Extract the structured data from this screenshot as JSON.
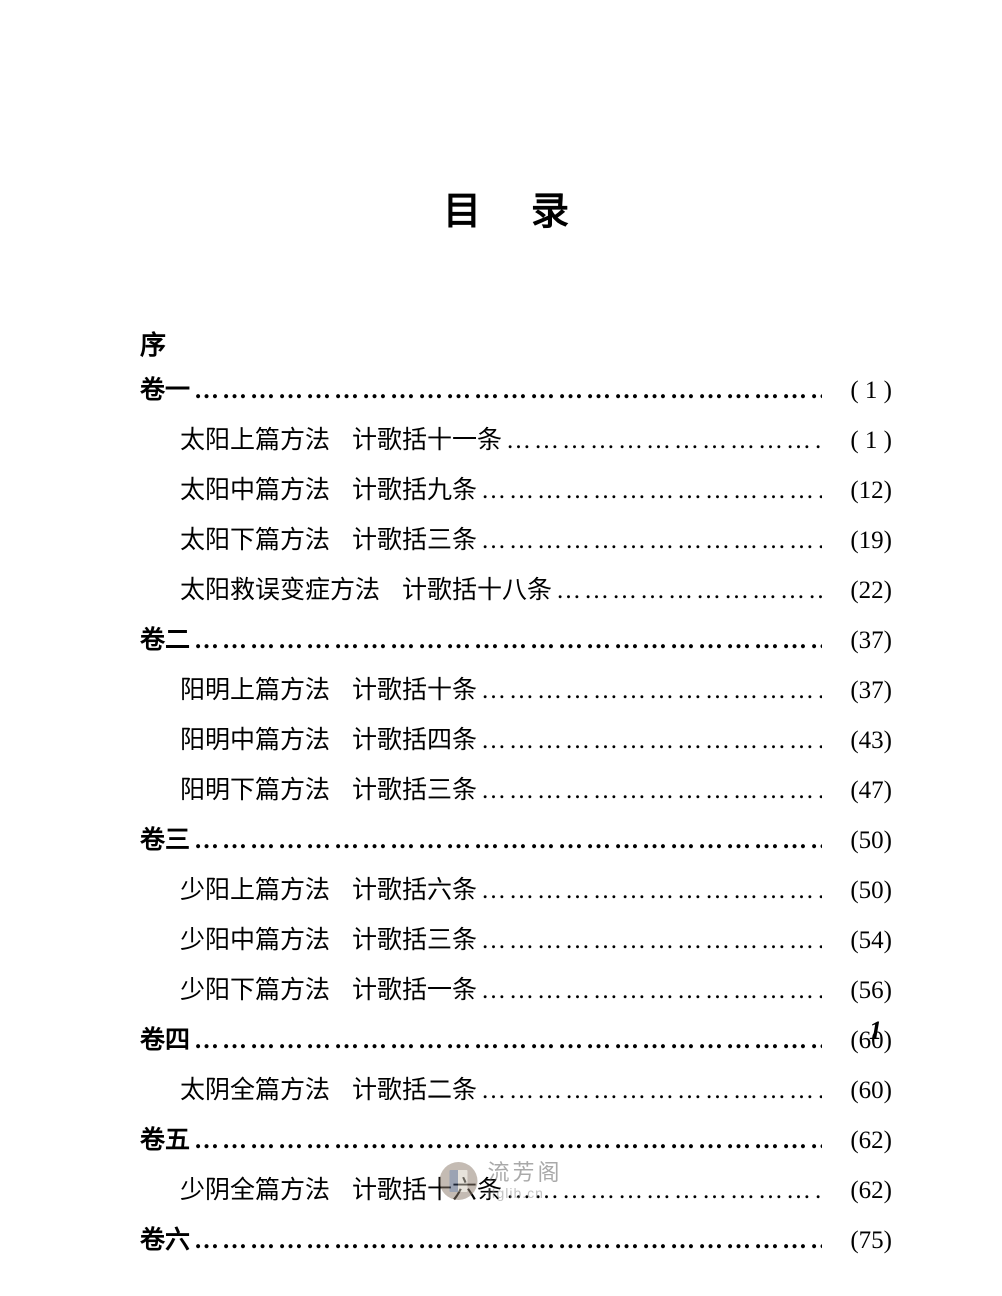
{
  "title": "目录",
  "preface": "序",
  "dots": "………………………………………………………………………………………………",
  "volumes": [
    {
      "label": "卷一",
      "page": "( 1 )",
      "entries": [
        {
          "label": "太阳上篇方法",
          "sub": "计歌括十一条",
          "page": "( 1 )"
        },
        {
          "label": "太阳中篇方法",
          "sub": "计歌括九条",
          "page": "(12)"
        },
        {
          "label": "太阳下篇方法",
          "sub": "计歌括三条",
          "page": "(19)"
        },
        {
          "label": "太阳救误变症方法",
          "sub": "计歌括十八条",
          "page": "(22)"
        }
      ]
    },
    {
      "label": "卷二",
      "page": "(37)",
      "entries": [
        {
          "label": "阳明上篇方法",
          "sub": "计歌括十条",
          "page": "(37)"
        },
        {
          "label": "阳明中篇方法",
          "sub": "计歌括四条",
          "page": "(43)"
        },
        {
          "label": "阳明下篇方法",
          "sub": "计歌括三条",
          "page": "(47)"
        }
      ]
    },
    {
      "label": "卷三",
      "page": "(50)",
      "entries": [
        {
          "label": "少阳上篇方法",
          "sub": "计歌括六条",
          "page": "(50)"
        },
        {
          "label": "少阳中篇方法",
          "sub": "计歌括三条",
          "page": "(54)"
        },
        {
          "label": "少阳下篇方法",
          "sub": "计歌括一条",
          "page": "(56)"
        }
      ]
    },
    {
      "label": "卷四",
      "page": "(60)",
      "entries": [
        {
          "label": "太阴全篇方法",
          "sub": "计歌括二条",
          "page": "(60)"
        }
      ]
    },
    {
      "label": "卷五",
      "page": "(62)",
      "entries": [
        {
          "label": "少阴全篇方法",
          "sub": "计歌括十六条",
          "page": "(62)"
        }
      ]
    },
    {
      "label": "卷六",
      "page": "(75)",
      "entries": []
    }
  ],
  "pageNumber": "1",
  "watermark": {
    "name": "流芳阁",
    "url": "lfglib.cn"
  },
  "colors": {
    "background": "#ffffff",
    "text": "#000000",
    "watermarkText": "#555555",
    "watermarkUrl": "#888888"
  },
  "typography": {
    "titleSize": 38,
    "bodySize": 25,
    "prefaceSize": 26,
    "watermarkNameSize": 22,
    "watermarkUrlSize": 14
  }
}
